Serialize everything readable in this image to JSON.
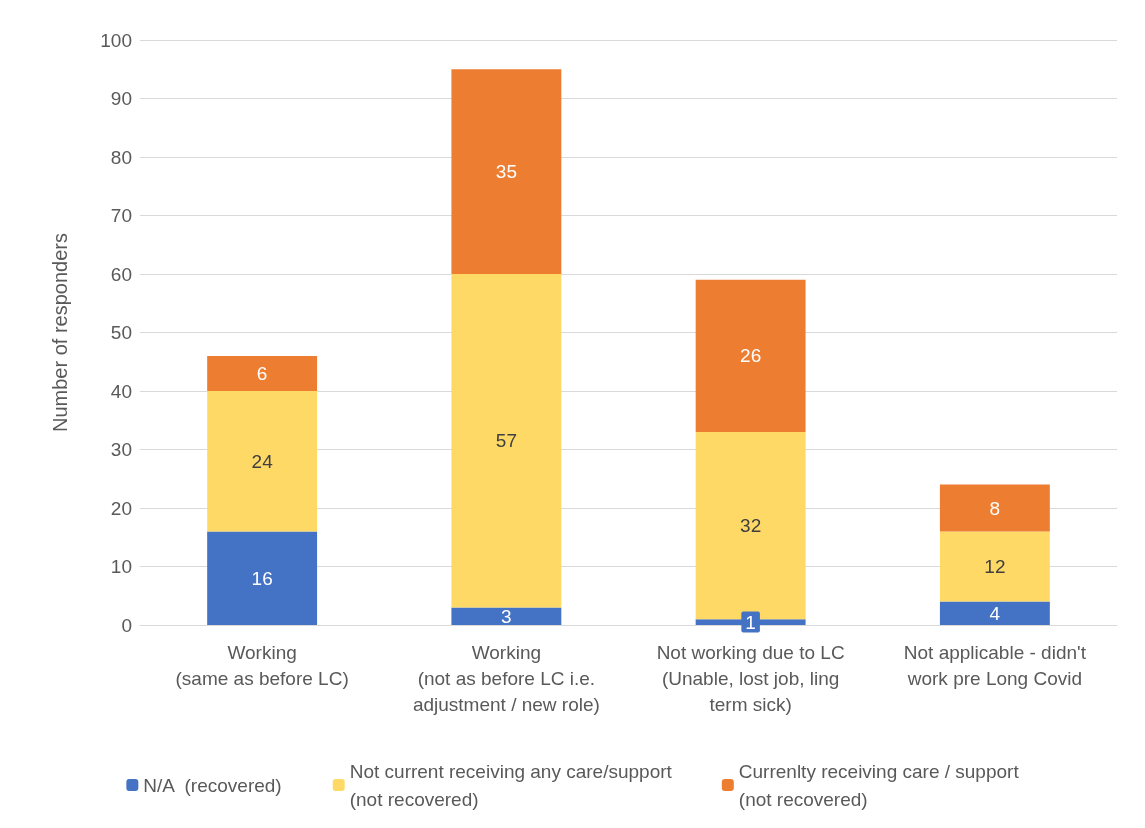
{
  "chart_data": {
    "type": "bar",
    "stacked": true,
    "ylabel": "Number of responders",
    "categories": [
      "Working\n(same as before LC)",
      "Working\n(not as before LC i.e.\nadjustment / new role)",
      "Not working due to LC\n(Unable, lost job, ling\nterm sick)",
      "Not applicable - didn't\nwork pre Long Covid"
    ],
    "series": [
      {
        "name": "N/A  (recovered)",
        "color": "#4472c4",
        "values": [
          16,
          3,
          1,
          4
        ]
      },
      {
        "name": "Not current receiving any care/support\n(not recovered)",
        "color": "#ffd966",
        "values": [
          24,
          57,
          32,
          12
        ]
      },
      {
        "name": "Currenlty receiving care / support\n(not recovered)",
        "color": "#ed7d31",
        "values": [
          6,
          35,
          26,
          8
        ]
      }
    ],
    "ylim": [
      0,
      100
    ],
    "yticks": [
      0,
      10,
      20,
      30,
      40,
      50,
      60,
      70,
      80,
      90,
      100
    ],
    "grid": "y",
    "legend": "bottom",
    "data_labels": true
  }
}
